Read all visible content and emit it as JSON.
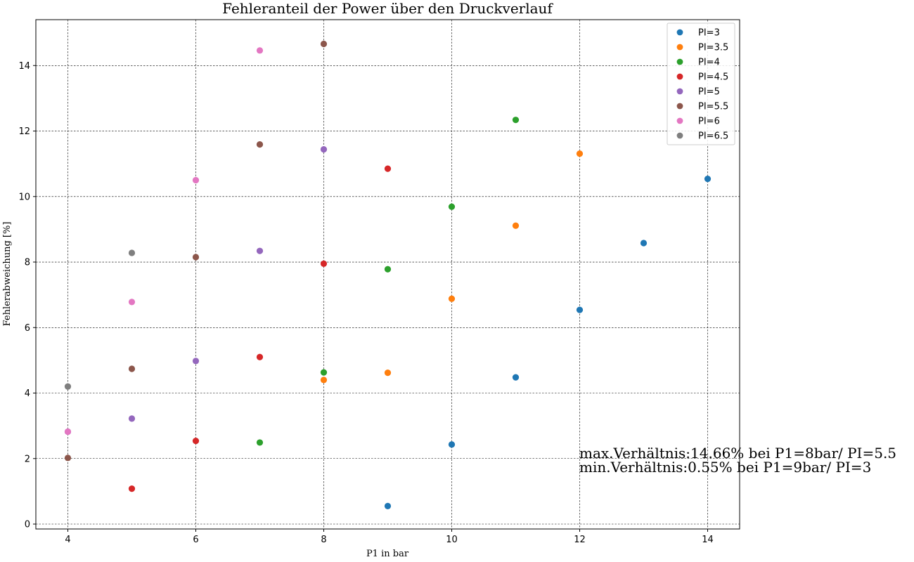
{
  "chart_data": {
    "type": "scatter",
    "title": "Fehleranteil der Power über den Druckverlauf",
    "xlabel": "P1 in bar",
    "ylabel": "Fehlerabweichung [%]",
    "xlim": [
      3.5,
      14.5
    ],
    "ylim": [
      -0.15,
      15.4
    ],
    "xticks": [
      4,
      6,
      8,
      10,
      12,
      14
    ],
    "yticks": [
      0,
      2,
      4,
      6,
      8,
      10,
      12,
      14
    ],
    "grid": true,
    "legend_position": "top-right",
    "series": [
      {
        "name": "PI=3",
        "color": "#1f77b4",
        "points": [
          [
            9,
            0.55
          ],
          [
            10,
            2.43
          ],
          [
            11,
            4.48
          ],
          [
            12,
            6.54
          ],
          [
            13,
            8.58
          ],
          [
            14,
            10.54
          ]
        ]
      },
      {
        "name": "PI=3.5",
        "color": "#ff7f0e",
        "points": [
          [
            8,
            4.4
          ],
          [
            9,
            4.62
          ],
          [
            10,
            6.88
          ],
          [
            11,
            9.11
          ],
          [
            12,
            11.31
          ]
        ]
      },
      {
        "name": "PI=4",
        "color": "#2ca02c",
        "points": [
          [
            7,
            2.49
          ],
          [
            8,
            4.63
          ],
          [
            9,
            7.78
          ],
          [
            10,
            9.69
          ],
          [
            11,
            12.34
          ]
        ]
      },
      {
        "name": "PI=4.5",
        "color": "#d62728",
        "points": [
          [
            5,
            1.08
          ],
          [
            6,
            2.54
          ],
          [
            7,
            5.1
          ],
          [
            8,
            7.95
          ],
          [
            9,
            10.85
          ]
        ]
      },
      {
        "name": "PI=5",
        "color": "#9467bd",
        "points": [
          [
            4,
            2.82
          ],
          [
            5,
            3.22
          ],
          [
            6,
            4.98
          ],
          [
            7,
            8.34
          ],
          [
            8,
            11.44
          ]
        ]
      },
      {
        "name": "PI=5.5",
        "color": "#8c564b",
        "points": [
          [
            4,
            2.02
          ],
          [
            5,
            4.74
          ],
          [
            6,
            8.15
          ],
          [
            7,
            11.59
          ],
          [
            8,
            14.66
          ]
        ]
      },
      {
        "name": "PI=6",
        "color": "#e377c2",
        "points": [
          [
            4,
            2.82
          ],
          [
            5,
            6.78
          ],
          [
            6,
            10.5
          ],
          [
            7,
            14.46
          ]
        ]
      },
      {
        "name": "PI=6.5",
        "color": "#7f7f7f",
        "points": [
          [
            4,
            4.2
          ],
          [
            5,
            8.28
          ]
        ]
      }
    ],
    "annotations": [
      "max.Verhältnis:14.66% bei P1=8bar/ PI=5.5",
      "min.Verhältnis:0.55% bei P1=9bar/ PI=3"
    ]
  }
}
